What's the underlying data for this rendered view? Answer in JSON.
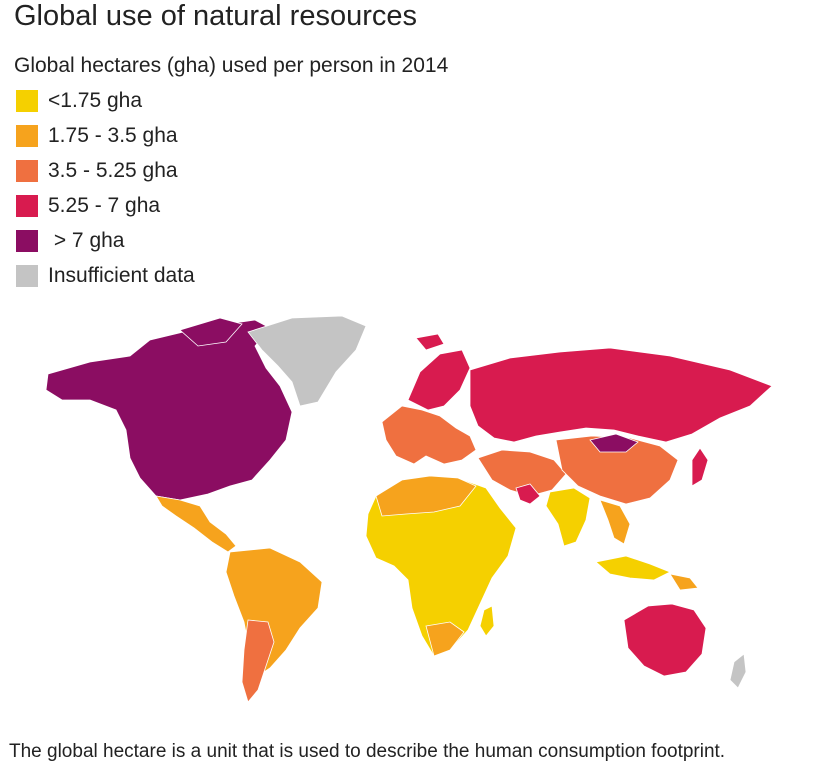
{
  "title": "Global use of natural resources",
  "subtitle": "Global hectares (gha) used per person in 2014",
  "legend": [
    {
      "label": "<1.75 gha",
      "color": "#f5d000"
    },
    {
      "label": "1.75 - 3.5 gha",
      "color": "#f6a31d"
    },
    {
      "label": "3.5 - 5.25 gha",
      "color": "#ef7040"
    },
    {
      "label": "5.25 - 7 gha",
      "color": "#d81b4f"
    },
    {
      "label": " > 7 gha",
      "color": "#8b0d62"
    },
    {
      "label": "Insufficient data",
      "color": "#c4c4c4"
    }
  ],
  "footnote": "The global hectare is a unit that is used to describe the human consumption footprint."
}
